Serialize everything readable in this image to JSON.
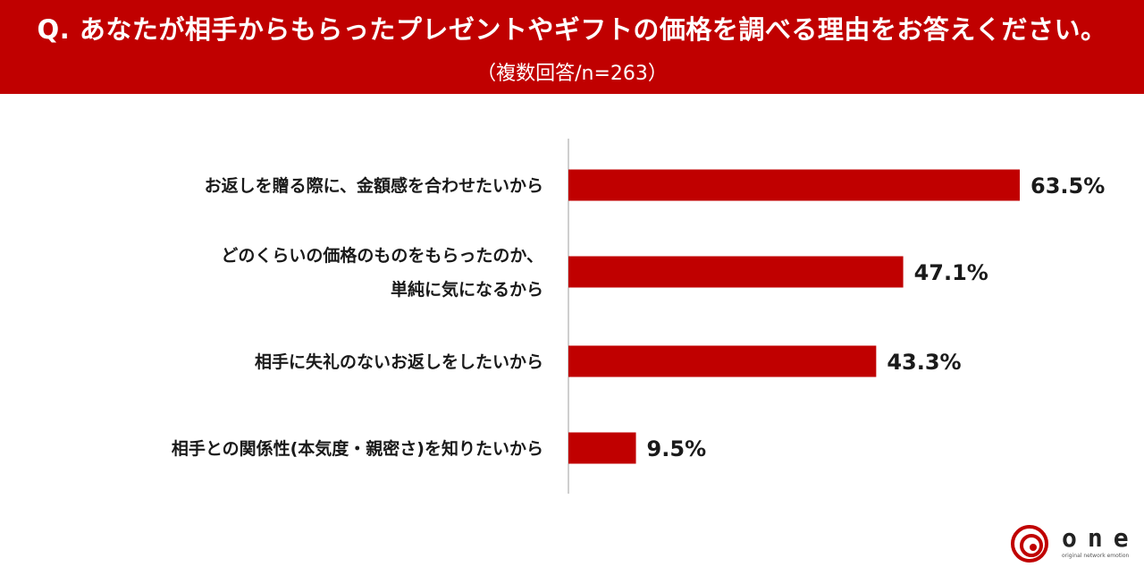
{
  "header": {
    "question": "Q. あなたが相手からもらったプレゼントやギフトの価格を調べる理由をお答えください。",
    "subtitle": "（複数回答/n=263）",
    "background": "#c00000"
  },
  "chart_data": {
    "type": "bar",
    "orientation": "horizontal",
    "categories": [
      [
        "お返しを贈る際に、金額感を合わせたいから"
      ],
      [
        "どのくらいの価格のものをもらったのか、",
        "単純に気になるから"
      ],
      [
        "相手に失礼のないお返しをしたいから"
      ],
      [
        "相手との関係性(本気度・親密さ)を知りたいから"
      ]
    ],
    "values": [
      63.5,
      47.1,
      43.3,
      9.5
    ],
    "value_labels": [
      "63.5%",
      "47.1%",
      "43.3%",
      "9.5%"
    ],
    "unit": "%",
    "xlim": [
      0,
      68
    ],
    "bar_color": "#c00000",
    "grid": false,
    "legend": "none"
  },
  "logo": {
    "text": "one",
    "tagline": "original network emotion",
    "color": "#c00000"
  }
}
